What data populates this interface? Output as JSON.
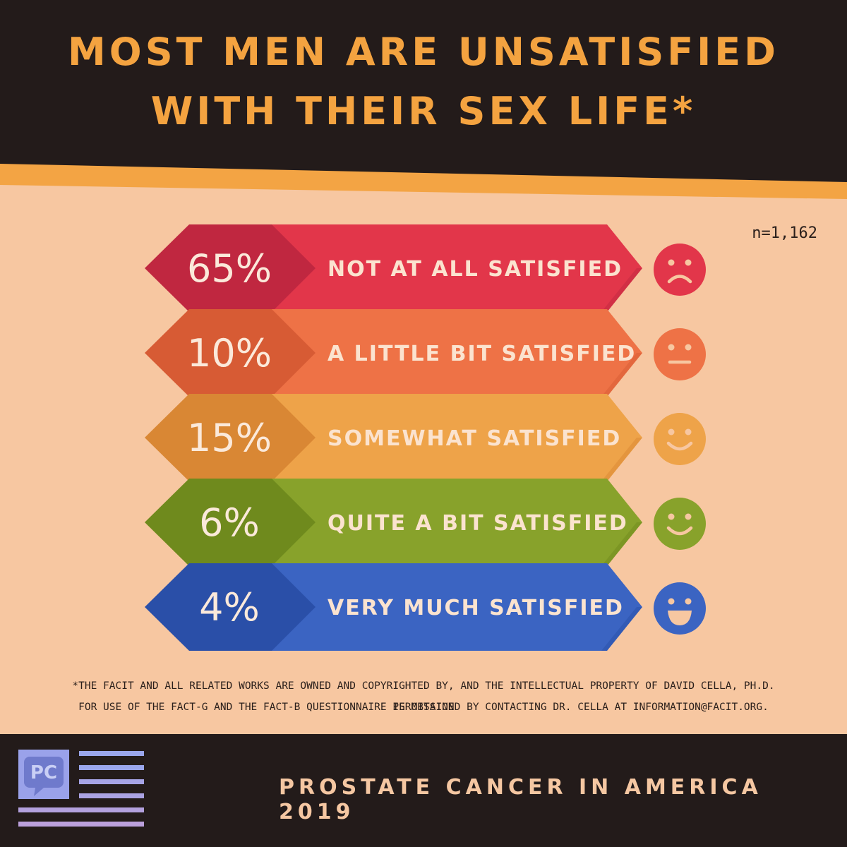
{
  "title": {
    "line1": "MOST MEN ARE UNSATISFIED",
    "line2": "WITH THEIR SEX LIFE*"
  },
  "sample_size": "n=1,162",
  "chart_data": {
    "type": "bar",
    "title": "MOST MEN ARE UNSATISFIED WITH THEIR SEX LIFE*",
    "categories": [
      "NOT AT ALL SATISFIED",
      "A LITTLE BIT SATISFIED",
      "SOMEWHAT SATISFIED",
      "QUITE A BIT SATISFIED",
      "VERY MUCH SATISFIED"
    ],
    "values": [
      65,
      10,
      15,
      6,
      4
    ],
    "labels": [
      "65%",
      "10%",
      "15%",
      "6%",
      "4%"
    ],
    "unit": "%",
    "colors": [
      "#e2364a",
      "#ee7246",
      "#eea349",
      "#88a22b",
      "#3b64c2"
    ],
    "dark_colors": [
      "#c02740",
      "#d75b34",
      "#d98734",
      "#6f8a1d",
      "#2a4fa8"
    ],
    "faces": [
      "frown",
      "neutral",
      "smile",
      "smile",
      "grin"
    ]
  },
  "footnote": {
    "line1": "*THE FACIT AND ALL RELATED WORKS ARE OWNED AND COPYRIGHTED BY, AND THE INTELLECTUAL PROPERTY OF DAVID CELLA, PH.D. PERMISSION",
    "line2": "FOR USE OF THE FACT-G AND THE FACT-B QUESTIONNAIRE IS OBTAINED BY CONTACTING DR. CELLA AT INFORMATION@FACIT.ORG."
  },
  "footer": {
    "logo_text": "PC",
    "tagline": "PROSTATE CANCER IN AMERICA 2019"
  }
}
